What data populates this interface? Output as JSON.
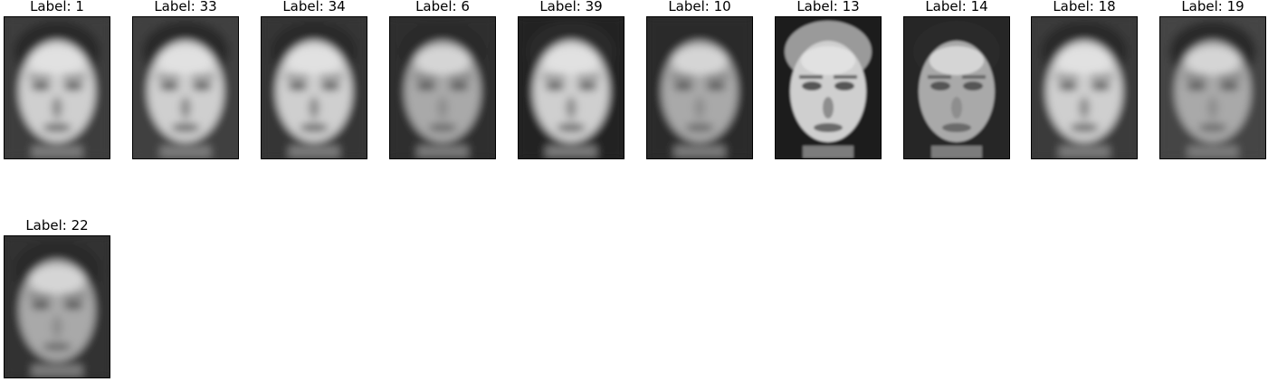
{
  "figure": {
    "panels": [
      {
        "label": "Label: 1",
        "face_icon": "blurry-face",
        "tone": "light",
        "background": "#3c3c3c"
      },
      {
        "label": "Label: 33",
        "face_icon": "blurry-face",
        "tone": "light",
        "background": "#404040"
      },
      {
        "label": "Label: 34",
        "face_icon": "blurry-face",
        "tone": "light",
        "background": "#363636"
      },
      {
        "label": "Label: 6",
        "face_icon": "blurry-face",
        "tone": "mid",
        "background": "#2e2e2e"
      },
      {
        "label": "Label: 39",
        "face_icon": "blurry-face",
        "tone": "light",
        "background": "#242424"
      },
      {
        "label": "Label: 10",
        "face_icon": "blurry-face",
        "tone": "mid",
        "background": "#2a2a2a"
      },
      {
        "label": "Label: 13",
        "face_icon": "sharp-face",
        "tone": "light",
        "background": "#1c1c1c"
      },
      {
        "label": "Label: 14",
        "face_icon": "sharp-face",
        "tone": "mid",
        "background": "#262626"
      },
      {
        "label": "Label: 18",
        "face_icon": "blurry-face",
        "tone": "light",
        "background": "#3a3a3a"
      },
      {
        "label": "Label: 19",
        "face_icon": "blurry-face",
        "tone": "mid",
        "background": "#444444"
      },
      {
        "label": "Label: 22",
        "face_icon": "blurry-face",
        "tone": "mid",
        "background": "#303030"
      }
    ]
  }
}
